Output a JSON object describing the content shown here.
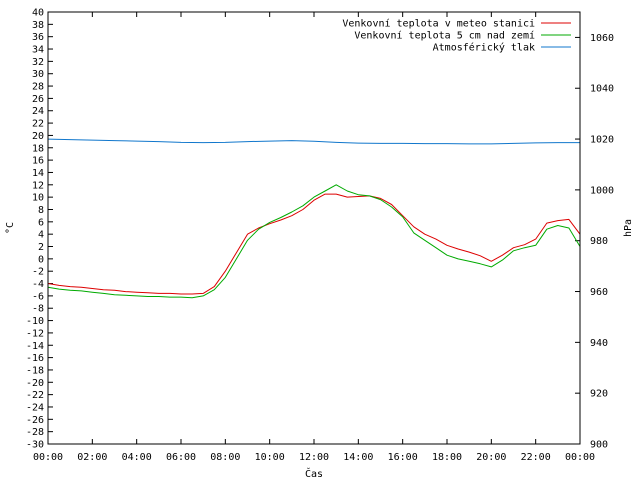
{
  "chart_data": {
    "type": "line",
    "xlabel": "Čas",
    "ylabel_left": "°C",
    "ylabel_right": "hPa",
    "x_ticks": [
      "00:00",
      "02:00",
      "04:00",
      "06:00",
      "08:00",
      "10:00",
      "12:00",
      "14:00",
      "16:00",
      "18:00",
      "20:00",
      "22:00",
      "00:00"
    ],
    "xlim_hours": [
      0,
      24
    ],
    "ylim_left": [
      -30,
      40
    ],
    "y_left_step": 2,
    "ylim_right": [
      900,
      1070
    ],
    "y_right_ticks": [
      900,
      920,
      940,
      960,
      980,
      1000,
      1020,
      1040,
      1060
    ],
    "grid": false,
    "legend_position": "top-right",
    "series": [
      {
        "name": "Venkovní teplota v meteo stanici",
        "axis": "left",
        "color": "#dd0000",
        "x": [
          0,
          0.5,
          1,
          1.5,
          2,
          2.5,
          3,
          3.5,
          4,
          4.5,
          5,
          5.5,
          6,
          6.5,
          7,
          7.5,
          8,
          8.5,
          9,
          9.5,
          10,
          10.5,
          11,
          11.5,
          12,
          12.5,
          13,
          13.5,
          14,
          14.5,
          15,
          15.5,
          16,
          16.5,
          17,
          17.5,
          18,
          18.5,
          19,
          19.5,
          20,
          20.5,
          21,
          21.5,
          22,
          22.5,
          23,
          23.5,
          24
        ],
        "y": [
          -4,
          -4.3,
          -4.5,
          -4.6,
          -4.8,
          -5,
          -5.1,
          -5.3,
          -5.4,
          -5.5,
          -5.6,
          -5.6,
          -5.7,
          -5.7,
          -5.6,
          -4.5,
          -2,
          1,
          4,
          5,
          5.7,
          6.3,
          7,
          8,
          9.5,
          10.5,
          10.5,
          10,
          10.1,
          10.2,
          9.8,
          8.8,
          7,
          5.2,
          4,
          3.2,
          2.2,
          1.6,
          1.1,
          0.5,
          -0.4,
          0.6,
          1.8,
          2.3,
          3.2,
          5.8,
          6.2,
          6.4,
          4
        ]
      },
      {
        "name": "Venkovní teplota 5 cm nad zemí",
        "axis": "left",
        "color": "#00aa00",
        "x": [
          0,
          0.5,
          1,
          1.5,
          2,
          2.5,
          3,
          3.5,
          4,
          4.5,
          5,
          5.5,
          6,
          6.5,
          7,
          7.5,
          8,
          8.5,
          9,
          9.5,
          10,
          10.5,
          11,
          11.5,
          12,
          12.5,
          13,
          13.5,
          14,
          14.5,
          15,
          15.5,
          16,
          16.5,
          17,
          17.5,
          18,
          18.5,
          19,
          19.5,
          20,
          20.5,
          21,
          21.5,
          22,
          22.5,
          23,
          23.5,
          24
        ],
        "y": [
          -4.6,
          -4.9,
          -5.1,
          -5.2,
          -5.4,
          -5.6,
          -5.8,
          -5.9,
          -6,
          -6.1,
          -6.1,
          -6.2,
          -6.2,
          -6.3,
          -6,
          -5,
          -3,
          0,
          3,
          4.8,
          5.9,
          6.7,
          7.6,
          8.6,
          10,
          11,
          12,
          11,
          10.4,
          10.2,
          9.6,
          8.4,
          6.8,
          4.2,
          3,
          1.8,
          0.6,
          0,
          -0.4,
          -0.8,
          -1.3,
          -0.2,
          1.3,
          1.8,
          2.2,
          4.8,
          5.4,
          5,
          2
        ]
      },
      {
        "name": "Atmosférický tlak",
        "axis": "right",
        "color": "#1177cc",
        "x": [
          0,
          1,
          2,
          3,
          4,
          5,
          6,
          7,
          8,
          9,
          10,
          11,
          12,
          13,
          14,
          15,
          16,
          17,
          18,
          19,
          20,
          21,
          22,
          23,
          24
        ],
        "y": [
          1020,
          1019.8,
          1019.6,
          1019.4,
          1019.2,
          1019.0,
          1018.7,
          1018.6,
          1018.7,
          1019.0,
          1019.2,
          1019.4,
          1019.1,
          1018.7,
          1018.4,
          1018.3,
          1018.3,
          1018.2,
          1018.2,
          1018.1,
          1018.1,
          1018.3,
          1018.5,
          1018.6,
          1018.6
        ]
      }
    ]
  }
}
